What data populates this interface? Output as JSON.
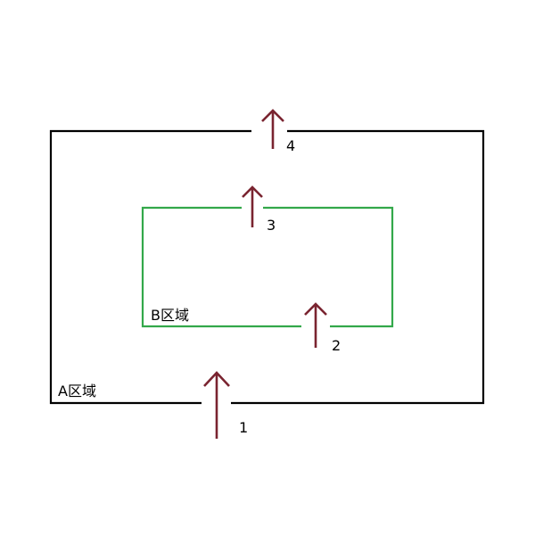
{
  "regions": {
    "a": {
      "label": "A区域",
      "color": "#000000"
    },
    "b": {
      "label": "B区域",
      "color": "#33a84a"
    }
  },
  "arrows": [
    {
      "label": "1",
      "color": "#7a2430"
    },
    {
      "label": "2",
      "color": "#7a2430"
    },
    {
      "label": "3",
      "color": "#7a2430"
    },
    {
      "label": "4",
      "color": "#7a2430"
    }
  ]
}
